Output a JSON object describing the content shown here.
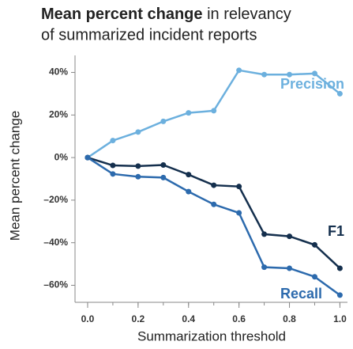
{
  "chart_data": {
    "type": "line",
    "title": [
      "Mean percent change",
      "in relevancy",
      "of summarized incident reports"
    ],
    "x_label": "Summarization threshold",
    "y_label": "Mean percent change",
    "x": [
      0,
      0.1,
      0.2,
      0.3,
      0.4,
      0.5,
      0.6,
      0.7,
      0.8,
      0.9,
      1.0
    ],
    "series": [
      {
        "name": "Precision",
        "color": "#6cb0de",
        "values": [
          0,
          8,
          12,
          17,
          21,
          22,
          41,
          39,
          39,
          39.5,
          30
        ]
      },
      {
        "name": "F1",
        "color": "#142f4d",
        "values": [
          0,
          -3.7,
          -4,
          -3.5,
          -8,
          -13,
          -13.6,
          -36,
          -37,
          -41,
          -52
        ]
      },
      {
        "name": "Recall",
        "color": "#2c6aad",
        "values": [
          0,
          -7.7,
          -9,
          -9.4,
          -16,
          -22,
          -26,
          -51.5,
          -52,
          -56,
          -64.6
        ]
      }
    ],
    "xlim": [
      -0.05,
      1.03
    ],
    "xticks": [
      {
        "value": 0,
        "label": "0.0"
      },
      {
        "value": 0.2,
        "label": "0.2"
      },
      {
        "value": 0.4,
        "label": "0.4"
      },
      {
        "value": 0.6,
        "label": "0.6"
      },
      {
        "value": 0.8,
        "label": "0.8"
      },
      {
        "value": 1.0,
        "label": "1.0"
      }
    ],
    "ylim": [
      -68,
      48
    ],
    "yticks": [
      {
        "value": 40,
        "label": "40%"
      },
      {
        "value": 20,
        "label": "20%"
      },
      {
        "value": 0,
        "label": "0%"
      },
      {
        "value": -20,
        "label": "–20%"
      },
      {
        "value": -40,
        "label": "–40%"
      },
      {
        "value": -60,
        "label": "–60%"
      }
    ]
  }
}
